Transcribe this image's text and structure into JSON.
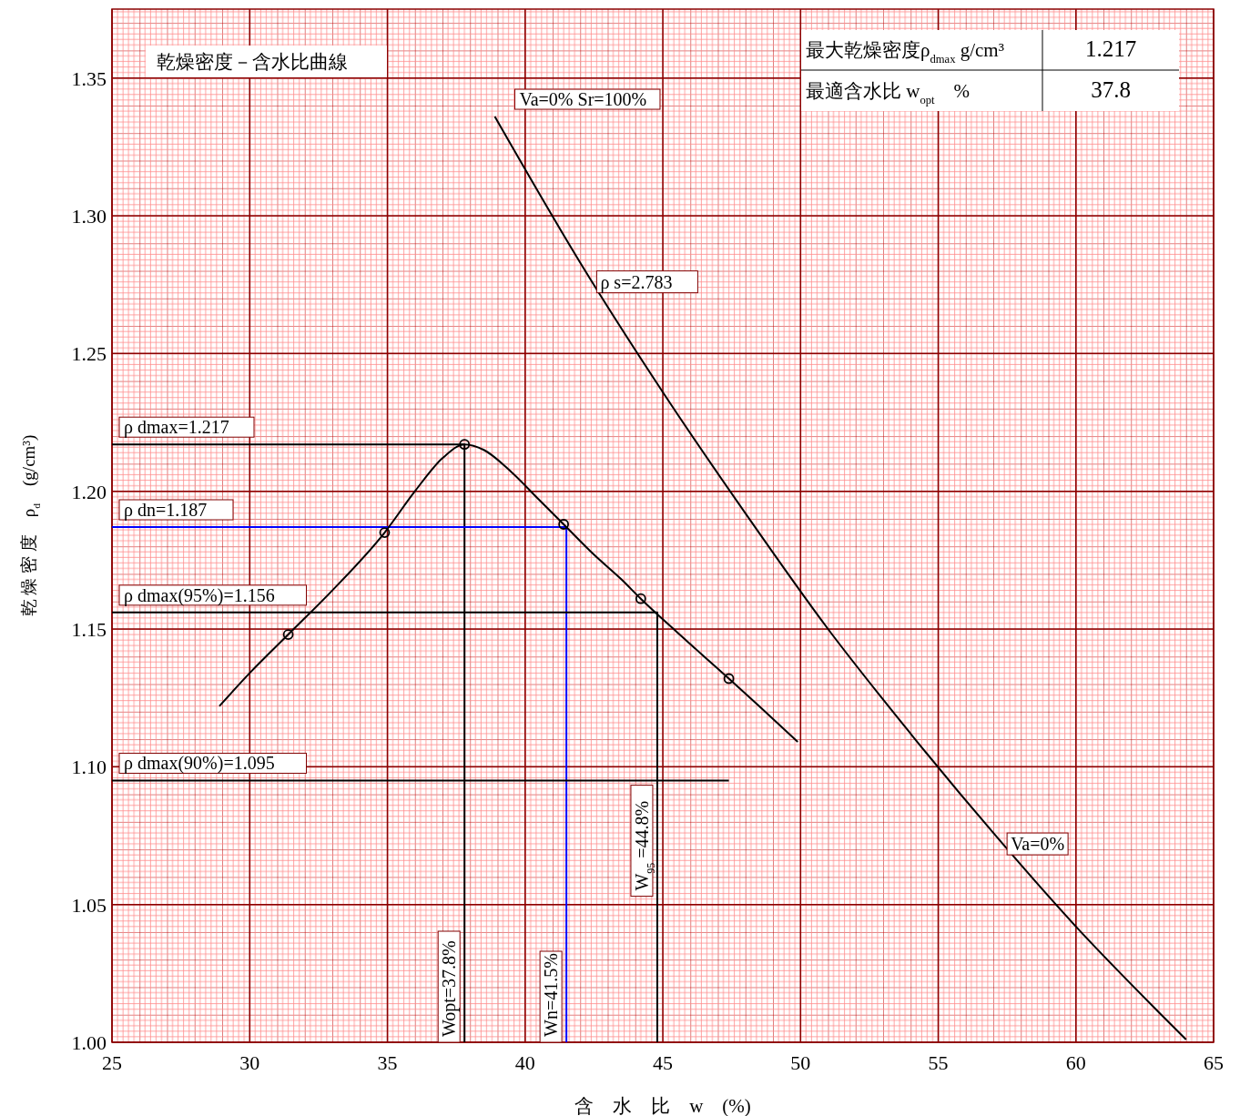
{
  "chart_data": {
    "type": "line",
    "title": "乾燥密度－含水比曲線",
    "xlabel": "含　水　比　w　(%)",
    "ylabel": "乾 燥 密 度　ρ$_{d}$　(g/cm³)",
    "xlim": [
      25,
      65
    ],
    "xticks": [
      25,
      30,
      35,
      40,
      45,
      50,
      55,
      60,
      65
    ],
    "ylim": [
      1.0,
      1.375
    ],
    "yticks": [
      {
        "value": 1.0,
        "label": "1.00"
      },
      {
        "value": 1.05,
        "label": "1.05"
      },
      {
        "value": 1.1,
        "label": "1.10"
      },
      {
        "value": 1.15,
        "label": "1.15"
      },
      {
        "value": 1.2,
        "label": "1.20"
      },
      {
        "value": 1.25,
        "label": "1.25"
      },
      {
        "value": 1.3,
        "label": "1.30"
      },
      {
        "value": 1.35,
        "label": "1.35"
      }
    ],
    "grid": true,
    "legend": false,
    "series": [
      {
        "name": "ρ dmax=1.217",
        "color": "#000000",
        "x": [
          25,
          37.8,
          37.8
        ],
        "values": [
          1.217,
          1.217,
          1.0
        ]
      },
      {
        "name": "ρ dn=1.187",
        "color": "#0000ff",
        "x": [
          25,
          41.5,
          41.5
        ],
        "values": [
          1.187,
          1.187,
          1.0
        ]
      },
      {
        "name": "ρ dmax(95%)=1.156",
        "color": "#000000",
        "x": [
          25,
          44.8,
          44.8
        ],
        "values": [
          1.156,
          1.156,
          1.0
        ]
      },
      {
        "name": "ρ dmax(90%)=1.095",
        "color": "#000000",
        "x": [
          25,
          47.4
        ],
        "values": [
          1.095,
          1.095
        ]
      },
      {
        "color": "#000000",
        "x": [
          28.9,
          30,
          31.4,
          33,
          34.9,
          36,
          37,
          37.8,
          38.5,
          39.5,
          40.5,
          41.4,
          42.5,
          43.5,
          44.2,
          45.5,
          46.5,
          47.4,
          48.5,
          49.9
        ],
        "values": [
          1.122,
          1.134,
          1.148,
          1.164,
          1.185,
          1.2,
          1.212,
          1.217,
          1.215,
          1.207,
          1.197,
          1.188,
          1.177,
          1.168,
          1.161,
          1.149,
          1.14,
          1.132,
          1.122,
          1.109
        ]
      },
      {
        "type": "scatter",
        "marker": "circle",
        "color": "#000000",
        "x": [
          31.4,
          34.9,
          37.8,
          41.4,
          44.2,
          47.4
        ],
        "values": [
          1.148,
          1.185,
          1.217,
          1.188,
          1.161,
          1.132
        ]
      },
      {
        "name": "Va=0% Sr=100%",
        "color": "#000000",
        "x": [
          38.9,
          42,
          45,
          48,
          51,
          54,
          57,
          60,
          63,
          64
        ],
        "values": [
          1.336,
          1.283,
          1.236,
          1.192,
          1.15,
          1.112,
          1.076,
          1.042,
          1.011,
          1.001
        ]
      }
    ],
    "annotations": [
      "最大乾燥密度ρ$_{dmax}$ g/cm³",
      "1.217",
      "最適含水比 w$_{opt}$　%",
      "37.8",
      {
        "text": "Wopt=37.8%",
        "x": 37.8,
        "y": 1.0
      },
      {
        "text": "Wn=41.5%",
        "x": 41.5,
        "y": 1.0
      },
      {
        "text": "W$_{95}$ =44.8%",
        "x": 44.8,
        "y": 1.053
      },
      {
        "text": "ρ s=2.783",
        "x": 42.6,
        "y": 1.276
      },
      {
        "text": "Va=0%",
        "x": 57.5,
        "y": 1.072
      }
    ]
  }
}
